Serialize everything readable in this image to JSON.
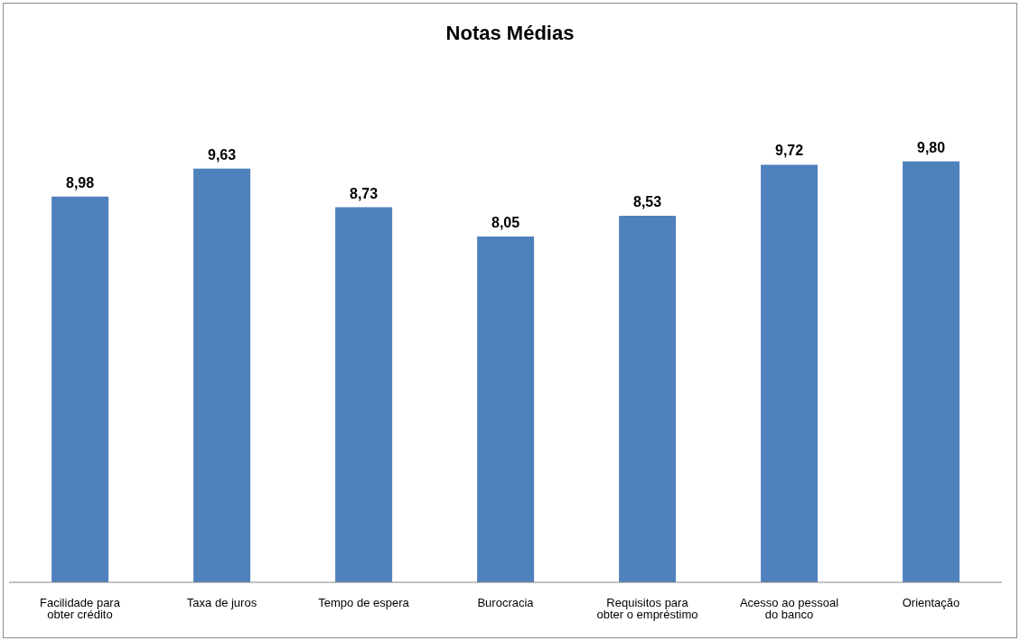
{
  "chart_data": {
    "type": "bar",
    "title": "Notas Médias",
    "categories": [
      "Facilidade para obter crédito",
      "Taxa de juros",
      "Tempo de espera",
      "Burocracia",
      "Requisitos para obter o empréstimo",
      "Acesso ao pessoal do banco",
      "Orientação"
    ],
    "values": [
      8.98,
      9.63,
      8.73,
      8.05,
      8.53,
      9.72,
      9.8
    ],
    "value_labels": [
      "8,98",
      "9,63",
      "8,73",
      "8,05",
      "8,53",
      "9,72",
      "9,80"
    ],
    "color": "#4f81bd",
    "tick_labels": "x",
    "grid": false
  }
}
